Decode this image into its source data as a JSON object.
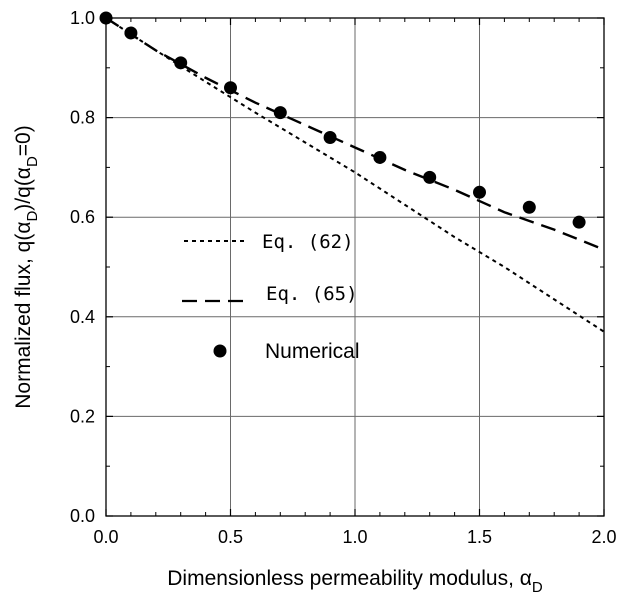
{
  "chart_data": {
    "type": "line",
    "xlabel": "Dimensionless permeability modulus, α",
    "xlabel_sub": "D",
    "ylabel_parts": [
      "Normalized flux, q(α",
      "D",
      ")/q(α",
      "D",
      "=0)"
    ],
    "xlim": [
      0.0,
      2.0
    ],
    "ylim": [
      0.0,
      1.0
    ],
    "x_ticks": [
      "0.0",
      "0.5",
      "1.0",
      "1.5",
      "2.0"
    ],
    "y_ticks": [
      "0.0",
      "0.2",
      "0.4",
      "0.6",
      "0.8",
      "1.0"
    ],
    "grid": true,
    "legend_position": "center-left",
    "series": [
      {
        "name": "Eq. (62)",
        "style": "dotted",
        "x": [
          0.0,
          0.2,
          0.4,
          0.6,
          0.8,
          1.0,
          1.2,
          1.4,
          1.6,
          1.8,
          2.0
        ],
        "y": [
          1.0,
          0.935,
          0.872,
          0.81,
          0.75,
          0.69,
          0.625,
          0.56,
          0.5,
          0.435,
          0.37
        ]
      },
      {
        "name": "Eq. (65)",
        "style": "dashed",
        "x": [
          0.0,
          0.2,
          0.4,
          0.6,
          0.8,
          1.0,
          1.2,
          1.4,
          1.6,
          1.8,
          2.0
        ],
        "y": [
          1.0,
          0.935,
          0.88,
          0.83,
          0.785,
          0.74,
          0.695,
          0.655,
          0.61,
          0.575,
          0.535
        ]
      },
      {
        "name": "Numerical",
        "style": "markers",
        "x": [
          0.0,
          0.1,
          0.3,
          0.5,
          0.7,
          0.9,
          1.1,
          1.3,
          1.5,
          1.7,
          1.9
        ],
        "y": [
          1.0,
          0.97,
          0.91,
          0.86,
          0.81,
          0.76,
          0.72,
          0.68,
          0.65,
          0.62,
          0.59
        ]
      }
    ]
  }
}
